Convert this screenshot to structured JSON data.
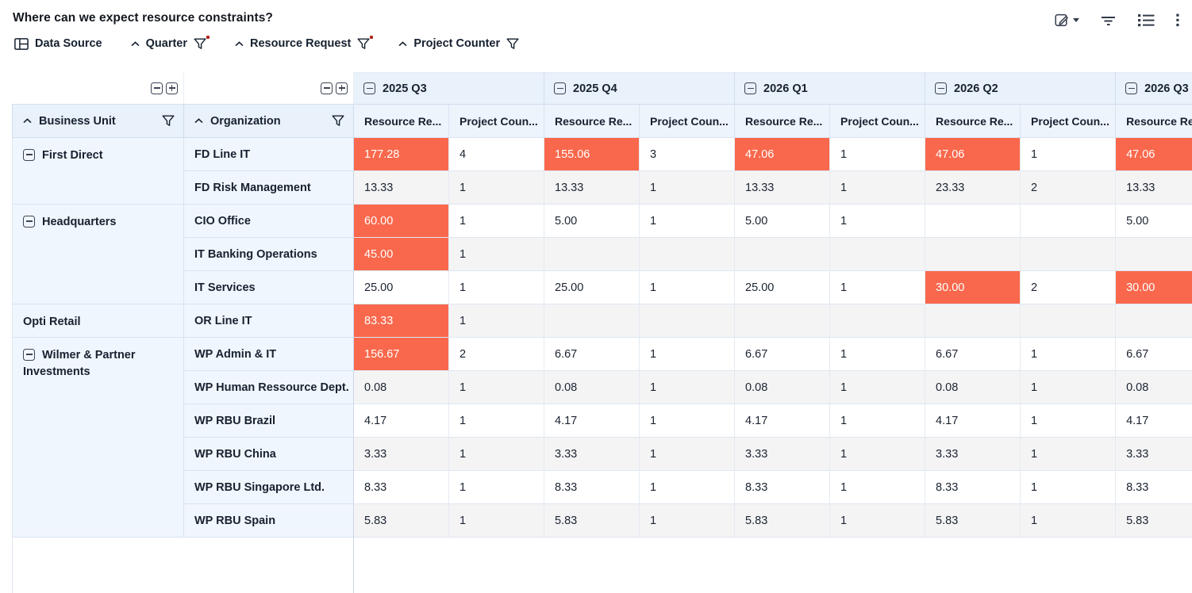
{
  "title": "Where can we expect resource constraints?",
  "toolbar": {
    "icons": [
      {
        "name": "edit-view-icon"
      },
      {
        "name": "filter-icon"
      },
      {
        "name": "list-icon"
      },
      {
        "name": "kebab-menu-icon"
      }
    ]
  },
  "fields": {
    "data_source_label": "Data Source",
    "items": [
      {
        "label": "Quarter",
        "sorted": "asc",
        "filter_active": true
      },
      {
        "label": "Resource Request",
        "sorted": "asc",
        "filter_active": true
      },
      {
        "label": "Project Counter",
        "sorted": "asc",
        "filter_active": false
      }
    ]
  },
  "colors": {
    "highlight": "#f9684c",
    "filter_dot": "#b3261e",
    "header_bg": "#e9f1fa",
    "row_header_bg": "#f0f6fd",
    "zebra": "#f4f4f5"
  },
  "grid": {
    "row_header_columns": [
      {
        "label": "Business Unit"
      },
      {
        "label": "Organization"
      }
    ],
    "quarters": [
      {
        "label": "2025 Q3"
      },
      {
        "label": "2025 Q4"
      },
      {
        "label": "2026 Q1"
      },
      {
        "label": "2026 Q2"
      },
      {
        "label": "2026 Q3"
      }
    ],
    "measure_headers": {
      "resource": "Resource Re...",
      "projects": "Project Coun..."
    },
    "groups": [
      {
        "business_unit": "First Direct",
        "expandable": true,
        "rows": [
          {
            "org": "FD Line IT",
            "cells": [
              {
                "v": "177.28",
                "hl": true
              },
              {
                "v": "4"
              },
              {
                "v": "155.06",
                "hl": true
              },
              {
                "v": "3"
              },
              {
                "v": "47.06",
                "hl": true
              },
              {
                "v": "1"
              },
              {
                "v": "47.06",
                "hl": true
              },
              {
                "v": "1"
              },
              {
                "v": "47.06",
                "hl": true
              }
            ]
          },
          {
            "org": "FD Risk Management",
            "cells": [
              {
                "v": "13.33"
              },
              {
                "v": "1"
              },
              {
                "v": "13.33"
              },
              {
                "v": "1"
              },
              {
                "v": "13.33"
              },
              {
                "v": "1"
              },
              {
                "v": "23.33"
              },
              {
                "v": "2"
              },
              {
                "v": "13.33"
              }
            ]
          }
        ]
      },
      {
        "business_unit": "Headquarters",
        "expandable": true,
        "rows": [
          {
            "org": "CIO Office",
            "cells": [
              {
                "v": "60.00",
                "hl": true
              },
              {
                "v": "1"
              },
              {
                "v": "5.00"
              },
              {
                "v": "1"
              },
              {
                "v": "5.00"
              },
              {
                "v": "1"
              },
              {
                "v": ""
              },
              {
                "v": ""
              },
              {
                "v": "5.00"
              }
            ]
          },
          {
            "org": "IT Banking Operations",
            "cells": [
              {
                "v": "45.00",
                "hl": true
              },
              {
                "v": "1"
              },
              {
                "v": ""
              },
              {
                "v": ""
              },
              {
                "v": ""
              },
              {
                "v": ""
              },
              {
                "v": ""
              },
              {
                "v": ""
              },
              {
                "v": ""
              }
            ]
          },
          {
            "org": "IT Services",
            "cells": [
              {
                "v": "25.00"
              },
              {
                "v": "1"
              },
              {
                "v": "25.00"
              },
              {
                "v": "1"
              },
              {
                "v": "25.00"
              },
              {
                "v": "1"
              },
              {
                "v": "30.00",
                "hl": true
              },
              {
                "v": "2"
              },
              {
                "v": "30.00",
                "hl": true
              }
            ]
          }
        ]
      },
      {
        "business_unit": "Opti Retail",
        "expandable": false,
        "rows": [
          {
            "org": "OR Line IT",
            "cells": [
              {
                "v": "83.33",
                "hl": true
              },
              {
                "v": "1"
              },
              {
                "v": ""
              },
              {
                "v": ""
              },
              {
                "v": ""
              },
              {
                "v": ""
              },
              {
                "v": ""
              },
              {
                "v": ""
              },
              {
                "v": ""
              }
            ]
          }
        ]
      },
      {
        "business_unit": "Wilmer & Partner Investments",
        "expandable": true,
        "rows": [
          {
            "org": "WP Admin & IT",
            "cells": [
              {
                "v": "156.67",
                "hl": true
              },
              {
                "v": "2"
              },
              {
                "v": "6.67"
              },
              {
                "v": "1"
              },
              {
                "v": "6.67"
              },
              {
                "v": "1"
              },
              {
                "v": "6.67"
              },
              {
                "v": "1"
              },
              {
                "v": "6.67"
              }
            ]
          },
          {
            "org": "WP Human Ressource Dept.",
            "cells": [
              {
                "v": "0.08"
              },
              {
                "v": "1"
              },
              {
                "v": "0.08"
              },
              {
                "v": "1"
              },
              {
                "v": "0.08"
              },
              {
                "v": "1"
              },
              {
                "v": "0.08"
              },
              {
                "v": "1"
              },
              {
                "v": "0.08"
              }
            ]
          },
          {
            "org": "WP RBU Brazil",
            "cells": [
              {
                "v": "4.17"
              },
              {
                "v": "1"
              },
              {
                "v": "4.17"
              },
              {
                "v": "1"
              },
              {
                "v": "4.17"
              },
              {
                "v": "1"
              },
              {
                "v": "4.17"
              },
              {
                "v": "1"
              },
              {
                "v": "4.17"
              }
            ]
          },
          {
            "org": "WP RBU China",
            "cells": [
              {
                "v": "3.33"
              },
              {
                "v": "1"
              },
              {
                "v": "3.33"
              },
              {
                "v": "1"
              },
              {
                "v": "3.33"
              },
              {
                "v": "1"
              },
              {
                "v": "3.33"
              },
              {
                "v": "1"
              },
              {
                "v": "3.33"
              }
            ]
          },
          {
            "org": "WP RBU Singapore Ltd.",
            "cells": [
              {
                "v": "8.33"
              },
              {
                "v": "1"
              },
              {
                "v": "8.33"
              },
              {
                "v": "1"
              },
              {
                "v": "8.33"
              },
              {
                "v": "1"
              },
              {
                "v": "8.33"
              },
              {
                "v": "1"
              },
              {
                "v": "8.33"
              }
            ]
          },
          {
            "org": "WP RBU Spain",
            "cells": [
              {
                "v": "5.83"
              },
              {
                "v": "1"
              },
              {
                "v": "5.83"
              },
              {
                "v": "1"
              },
              {
                "v": "5.83"
              },
              {
                "v": "1"
              },
              {
                "v": "5.83"
              },
              {
                "v": "1"
              },
              {
                "v": "5.83"
              }
            ]
          }
        ]
      }
    ]
  }
}
